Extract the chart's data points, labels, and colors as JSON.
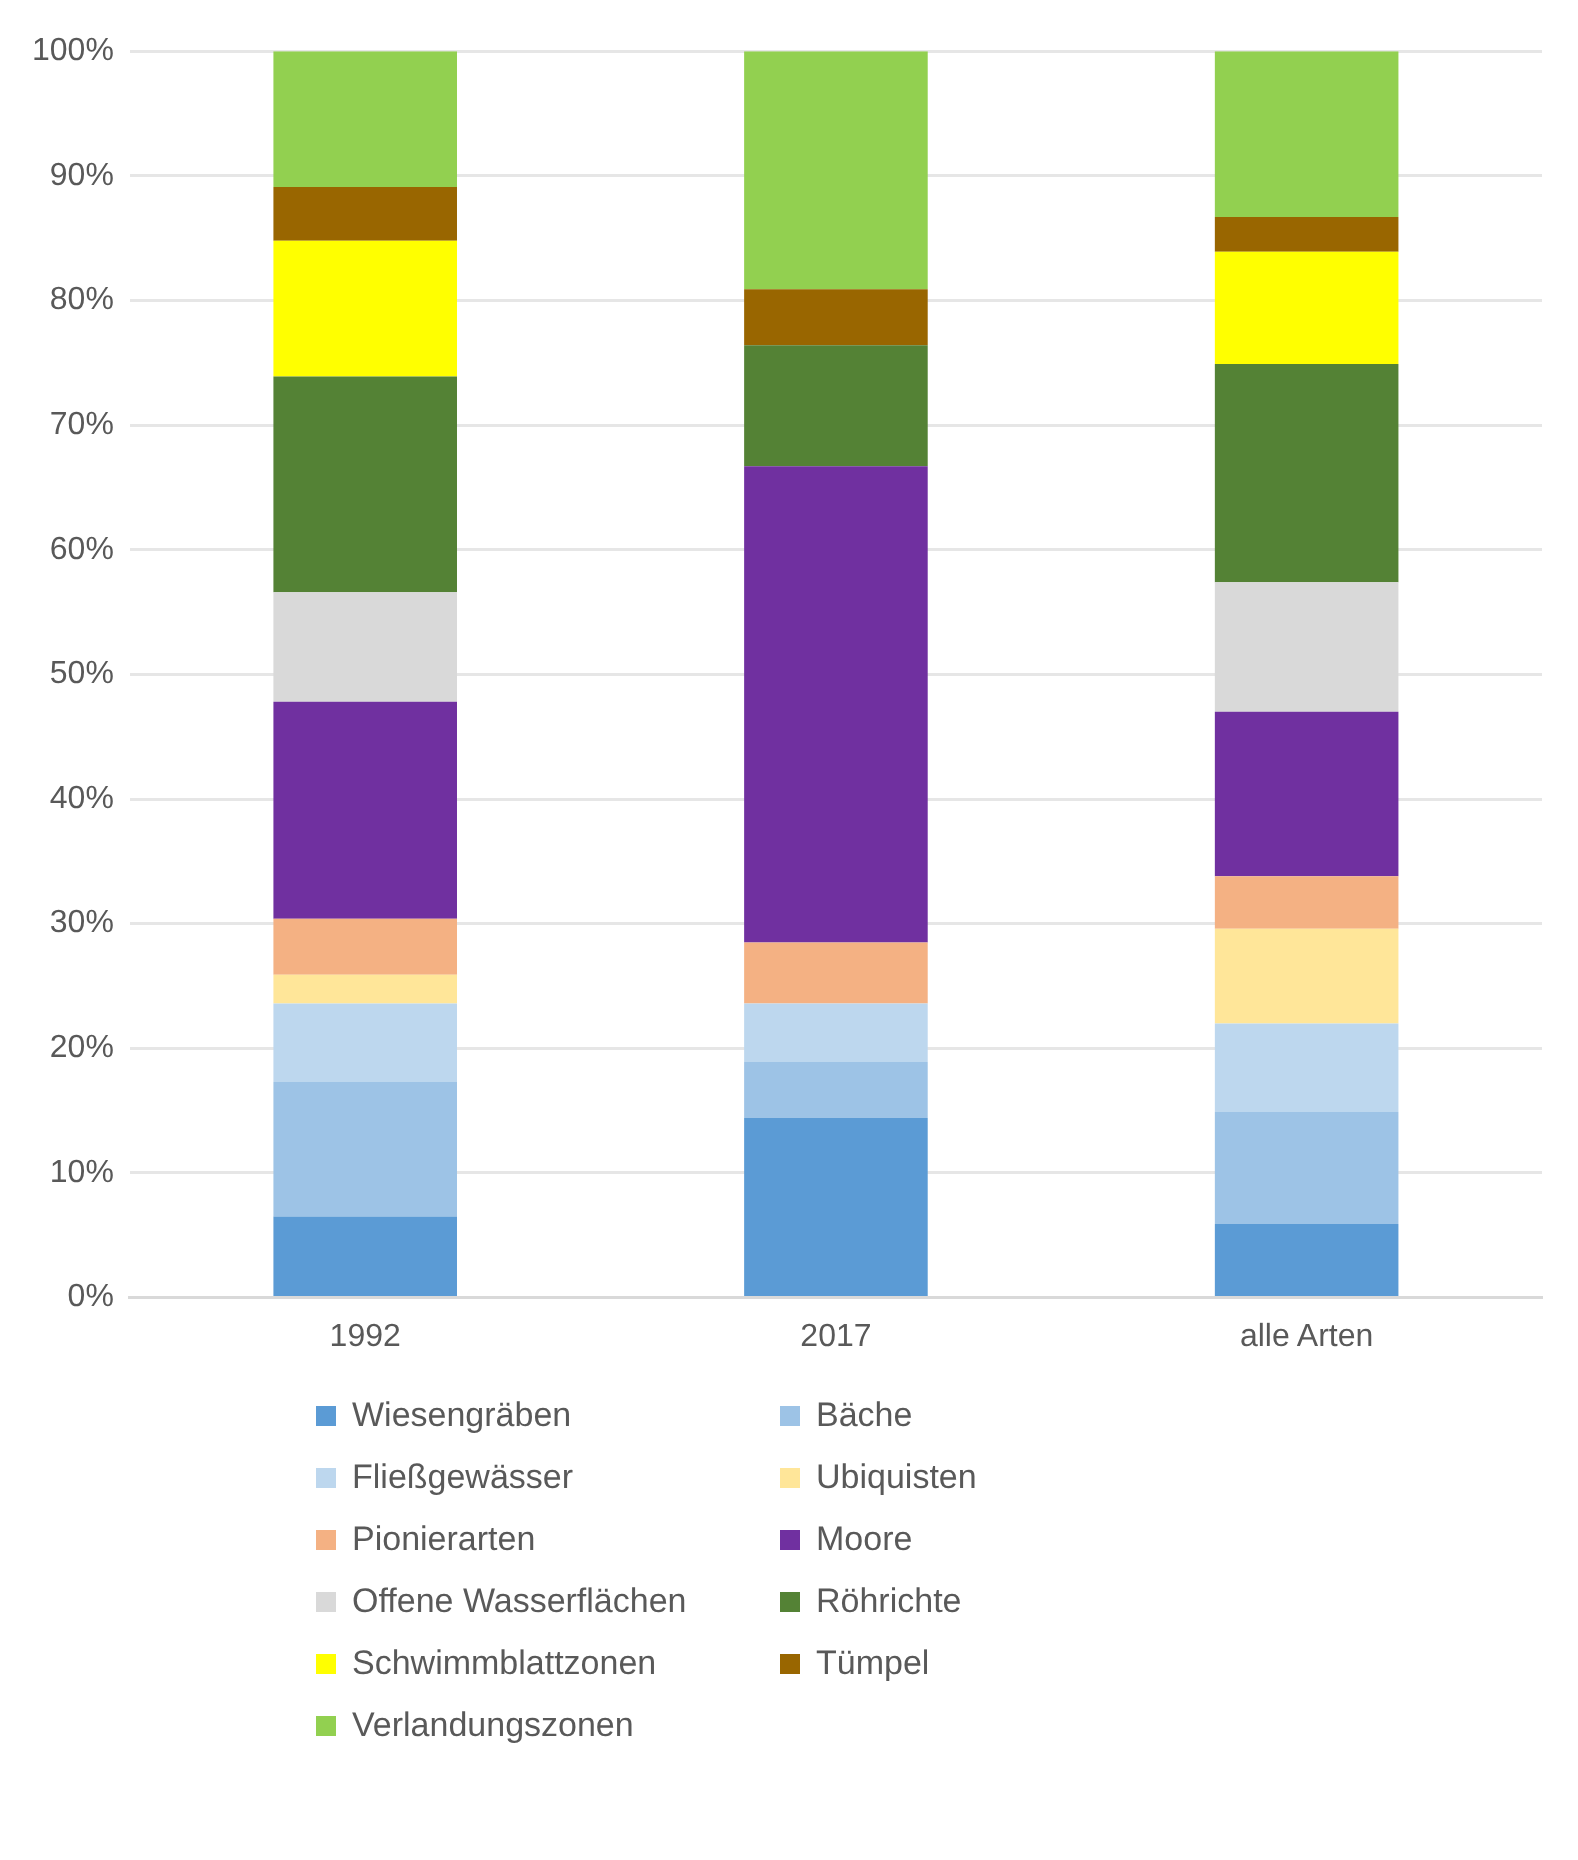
{
  "chart_data": {
    "type": "bar",
    "stacked": true,
    "categories": [
      "1992",
      "2017",
      "alle Arten"
    ],
    "series": [
      {
        "name": "Wiesengräben",
        "color": "#5b9bd5",
        "values": [
          6.5,
          14.4,
          5.9
        ]
      },
      {
        "name": "Bäche",
        "color": "#9dc3e6",
        "values": [
          10.8,
          4.5,
          9.0
        ]
      },
      {
        "name": "Fließgewässer",
        "color": "#bdd7ee",
        "values": [
          6.3,
          4.7,
          7.1
        ]
      },
      {
        "name": "Ubiquisten",
        "color": "#ffe699",
        "values": [
          2.3,
          0,
          7.6
        ]
      },
      {
        "name": "Pionierarten",
        "color": "#f4b183",
        "values": [
          4.5,
          4.9,
          4.2
        ]
      },
      {
        "name": "Moore",
        "color": "#7030a0",
        "values": [
          17.4,
          38.2,
          13.2
        ]
      },
      {
        "name": "Offene Wasserflächen",
        "color": "#d9d9d9",
        "values": [
          8.8,
          0,
          10.4
        ]
      },
      {
        "name": "Röhrichte",
        "color": "#548235",
        "values": [
          17.3,
          9.7,
          17.5
        ]
      },
      {
        "name": "Schwimmblattzonen",
        "color": "#ffff00",
        "values": [
          10.9,
          0,
          9.0
        ]
      },
      {
        "name": "Tümpel",
        "color": "#996600",
        "values": [
          4.3,
          4.5,
          2.8
        ]
      },
      {
        "name": "Verlandungszonen",
        "color": "#92d050",
        "values": [
          10.9,
          19.1,
          13.3
        ]
      }
    ],
    "ylim": [
      0,
      100
    ],
    "yticks": [
      {
        "value": 0,
        "label": "0%"
      },
      {
        "value": 10,
        "label": "10%"
      },
      {
        "value": 20,
        "label": "20%"
      },
      {
        "value": 30,
        "label": "30%"
      },
      {
        "value": 40,
        "label": "40%"
      },
      {
        "value": 50,
        "label": "50%"
      },
      {
        "value": 60,
        "label": "60%"
      },
      {
        "value": 70,
        "label": "70%"
      },
      {
        "value": 80,
        "label": "80%"
      },
      {
        "value": 90,
        "label": "90%"
      },
      {
        "value": 100,
        "label": "100%"
      }
    ],
    "grid": "y",
    "legend": "bottom"
  }
}
